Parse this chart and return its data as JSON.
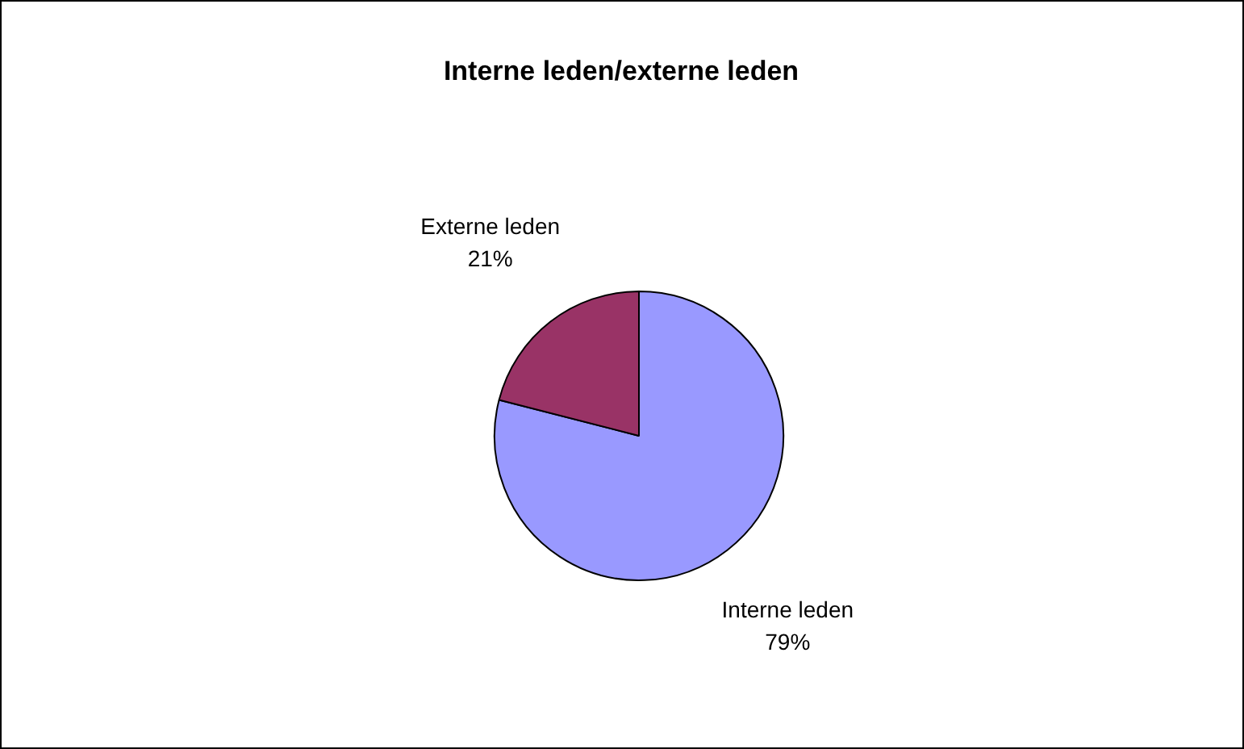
{
  "chart_data": {
    "type": "pie",
    "title": "Interne leden/externe leden",
    "categories": [
      "Interne leden",
      "Externe leden"
    ],
    "values": [
      79,
      21
    ],
    "colors": [
      "#9999ff",
      "#993366"
    ],
    "value_labels": [
      "79%",
      "21%"
    ],
    "legend": false
  }
}
